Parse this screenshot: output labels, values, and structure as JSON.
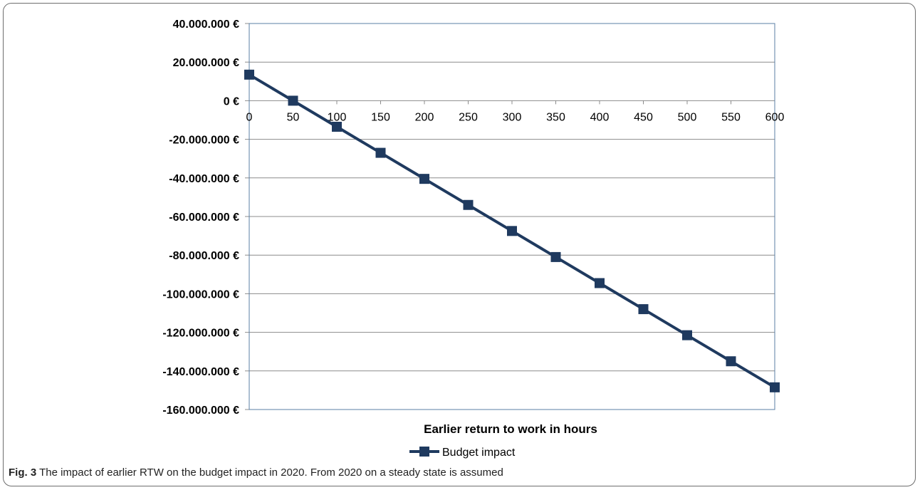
{
  "caption": {
    "label": "Fig. 3",
    "text": "The impact of earlier RTW on the budget impact in 2020. From 2020 on a steady state is assumed"
  },
  "colors": {
    "series": "#1f3a5f",
    "plot_border": "#5b7fa6",
    "grid": "#8c8c8c"
  },
  "chart_data": {
    "type": "line",
    "xlabel": "Earlier return to work in hours",
    "ylabel": "",
    "title": "",
    "xlim": [
      0,
      600
    ],
    "ylim": [
      -160000000,
      40000000
    ],
    "x_ticks": [
      "0",
      "50",
      "100",
      "150",
      "200",
      "250",
      "300",
      "350",
      "400",
      "450",
      "500",
      "550",
      "600"
    ],
    "y_ticks": [
      {
        "value": 40000000,
        "label": "40.000.000 €"
      },
      {
        "value": 20000000,
        "label": "20.000.000 €"
      },
      {
        "value": 0,
        "label": "0 €"
      },
      {
        "value": -20000000,
        "label": "-20.000.000 €"
      },
      {
        "value": -40000000,
        "label": "-40.000.000 €"
      },
      {
        "value": -60000000,
        "label": "-60.000.000 €"
      },
      {
        "value": -80000000,
        "label": "-80.000.000 €"
      },
      {
        "value": -100000000,
        "label": "-100.000.000 €"
      },
      {
        "value": -120000000,
        "label": "-120.000.000 €"
      },
      {
        "value": -140000000,
        "label": "-140.000.000 €"
      },
      {
        "value": -160000000,
        "label": "-160.000.000 €"
      }
    ],
    "grid": true,
    "legend": "bottom",
    "x": [
      0,
      50,
      100,
      150,
      200,
      250,
      300,
      350,
      400,
      450,
      500,
      550,
      600
    ],
    "series": [
      {
        "name": "Budget impact",
        "values": [
          13500000,
          0,
          -13500000,
          -27000000,
          -40500000,
          -54000000,
          -67500000,
          -81000000,
          -94500000,
          -108000000,
          -121500000,
          -135000000,
          -148500000
        ]
      }
    ]
  }
}
